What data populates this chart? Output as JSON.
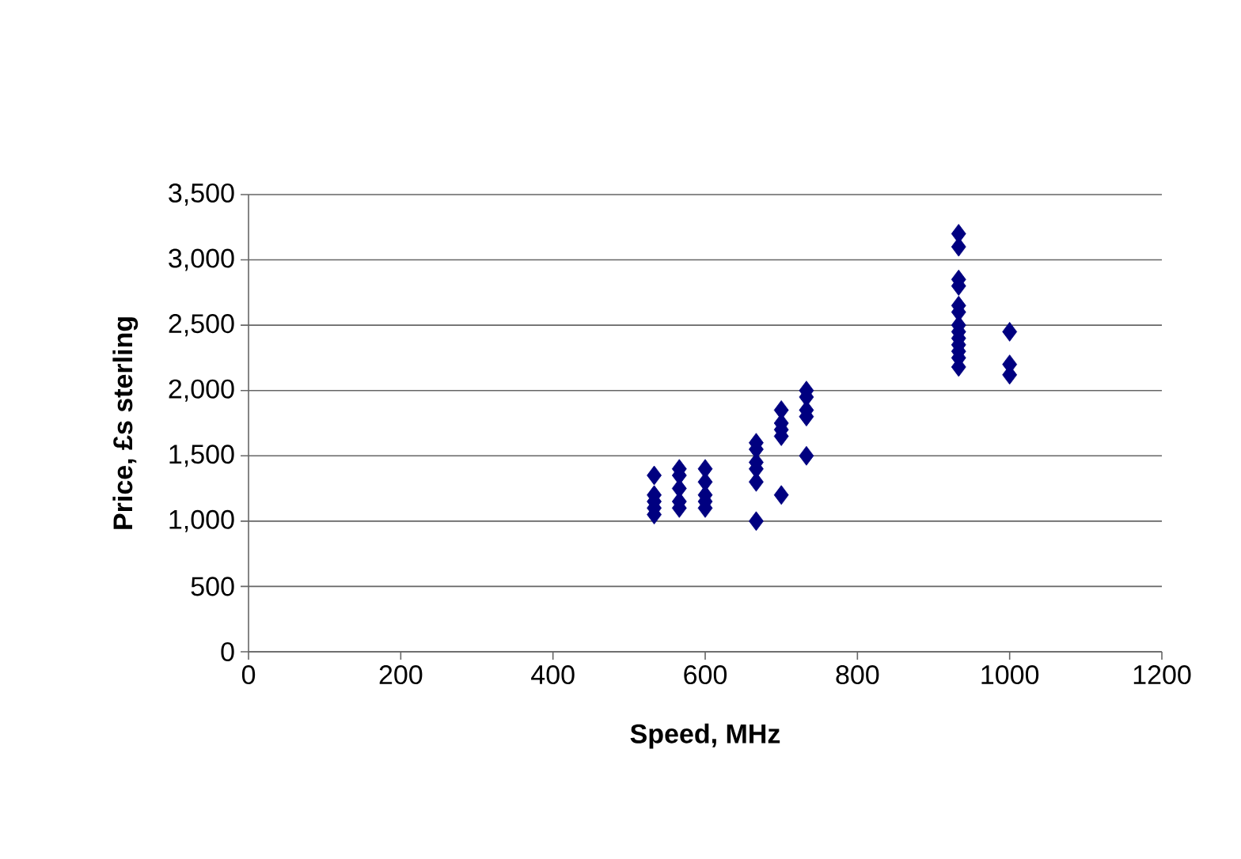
{
  "chart_data": {
    "type": "scatter",
    "xlabel": "Speed, MHz",
    "ylabel": "Price, £s sterling",
    "x": [
      533,
      533,
      533,
      533,
      533,
      566,
      566,
      566,
      566,
      566,
      600,
      600,
      600,
      600,
      600,
      667,
      667,
      667,
      667,
      667,
      667,
      700,
      700,
      700,
      700,
      700,
      733,
      733,
      733,
      733,
      733,
      933,
      933,
      933,
      933,
      933,
      933,
      933,
      933,
      933,
      933,
      933,
      933,
      933,
      1000,
      1000,
      1000
    ],
    "values": [
      1350,
      1200,
      1150,
      1100,
      1050,
      1400,
      1350,
      1250,
      1150,
      1100,
      1400,
      1300,
      1200,
      1150,
      1100,
      1600,
      1550,
      1450,
      1400,
      1300,
      1000,
      1850,
      1750,
      1700,
      1650,
      1200,
      2000,
      1950,
      1850,
      1800,
      1500,
      3200,
      3100,
      2850,
      2800,
      2650,
      2600,
      2500,
      2450,
      2400,
      2350,
      2300,
      2250,
      2180,
      2450,
      2200,
      2120
    ],
    "color": "#000080",
    "marker": "diamond",
    "grid": "y",
    "xlim": [
      0,
      1200
    ],
    "xticks": [
      0,
      200,
      400,
      600,
      800,
      1000,
      1200
    ],
    "ylim": [
      0,
      3500
    ],
    "yticks": [
      {
        "value": 0,
        "label": "0"
      },
      {
        "value": 500,
        "label": "500"
      },
      {
        "value": 1000,
        "label": "1,000"
      },
      {
        "value": 1500,
        "label": "1,500"
      },
      {
        "value": 2000,
        "label": "2,000"
      },
      {
        "value": 2500,
        "label": "2,500"
      },
      {
        "value": 3000,
        "label": "3,000"
      },
      {
        "value": 3500,
        "label": "3,500"
      }
    ]
  }
}
